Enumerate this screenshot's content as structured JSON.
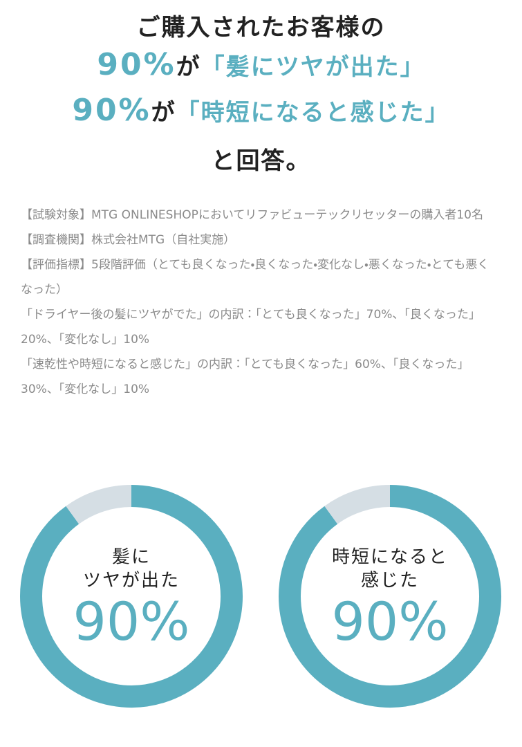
{
  "header": {
    "line1": "ご購入されたお客様の",
    "line2": {
      "percent": "90%",
      "particle": "が",
      "quote": "「髪にツヤが出た」"
    },
    "line3": {
      "percent": "90%",
      "particle": "が",
      "quote": "「時短になると感じた」"
    },
    "line4": "と回答。"
  },
  "notes": [
    "【試験対象】MTG ONLINESHOPにおいてリファビューテックリセッターの購入者10名",
    "【調査機関】株式会社MTG（自社実施）",
    "【評価指標】5段階評価（とても良くなった・良くなった・変化なし・悪くなった・とても悪くなった）",
    "「ドライヤー後の髪にツヤがでた」の内訳：「とても良くなった」70%、「良くなった」20%、「変化なし」10%",
    "「速乾性や時短になると感じた」の内訳：「とても良くなった」60%、「良くなった」30%、「変化なし」10%"
  ],
  "chart_data": [
    {
      "type": "pie",
      "label": [
        "髪に",
        "ツヤが出た"
      ],
      "values": [
        90,
        10
      ],
      "value_labels": [
        "90%",
        null
      ],
      "colors": [
        "#5aafc0",
        "#d5dee4"
      ]
    },
    {
      "type": "pie",
      "label": [
        "時短になると",
        "感じた"
      ],
      "values": [
        90,
        10
      ],
      "value_labels": [
        "90%",
        null
      ],
      "colors": [
        "#5aafc0",
        "#d5dee4"
      ]
    }
  ]
}
